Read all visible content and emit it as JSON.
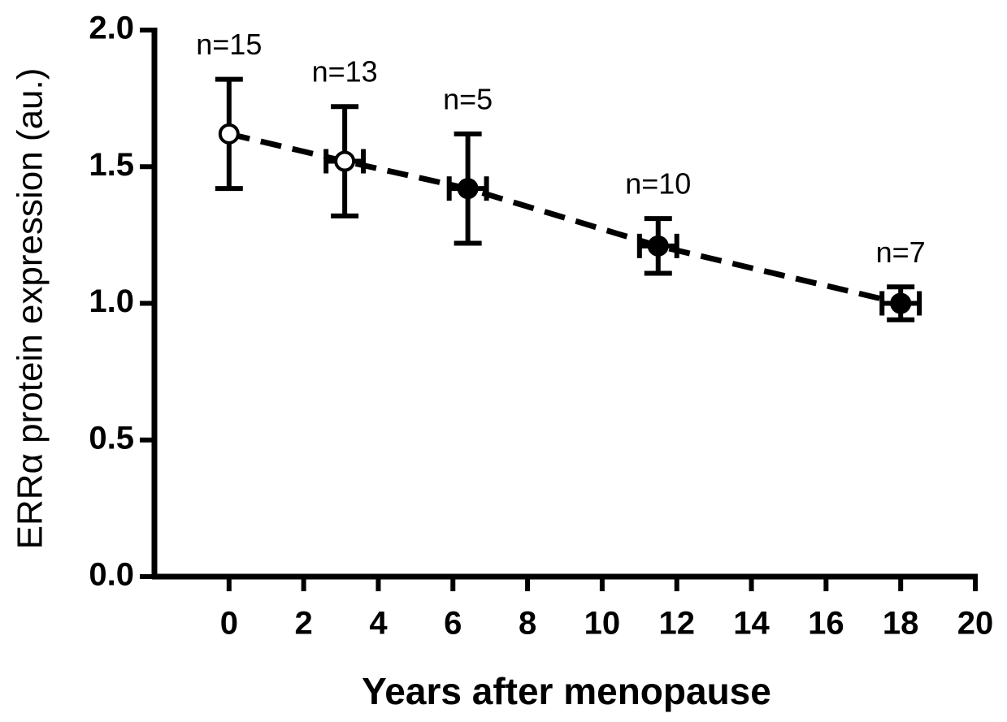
{
  "chart_data": {
    "type": "scatter",
    "xlabel": "Years after menopause",
    "ylabel": "ERRα protein expression (au.)",
    "x": [
      0,
      3.1,
      6.4,
      11.5,
      18
    ],
    "values": [
      1.62,
      1.52,
      1.42,
      1.21,
      1.0
    ],
    "yerr": [
      0.2,
      0.2,
      0.2,
      0.1,
      0.06
    ],
    "xerr": [
      null,
      0.5,
      0.5,
      0.5,
      0.5
    ],
    "markers": [
      "open",
      "open",
      "filled",
      "filled",
      "filled"
    ],
    "annotations": [
      "n=15",
      "n=13",
      "n=5",
      "n=10",
      "n=7"
    ],
    "color": "#000000",
    "line_style": "dashed",
    "xlim": [
      -2,
      20
    ],
    "xticks": [
      0,
      2,
      4,
      6,
      8,
      10,
      12,
      14,
      16,
      18,
      20
    ],
    "ylim": [
      0,
      2.0
    ],
    "yticks": [
      {
        "value": 0,
        "label": "0.0"
      },
      0.5,
      {
        "value": 1,
        "label": "1.0"
      },
      1.5,
      {
        "value": 2,
        "label": "2.0"
      }
    ]
  }
}
